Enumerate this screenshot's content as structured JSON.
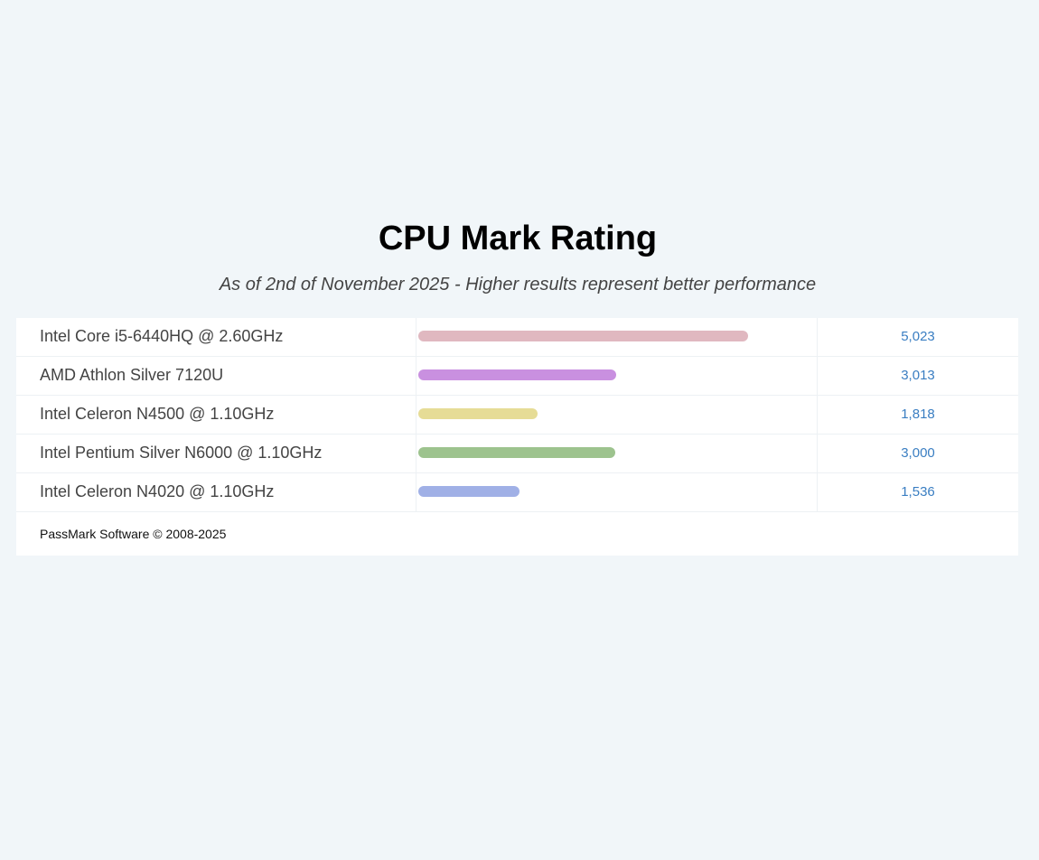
{
  "chart_data": {
    "type": "bar",
    "orientation": "horizontal",
    "title": "CPU Mark Rating",
    "subtitle": "As of 2nd of November 2025 - Higher results represent better performance",
    "categories": [
      "Intel Core i5-6440HQ @ 2.60GHz",
      "AMD Athlon Silver 7120U",
      "Intel Celeron N4500 @ 1.10GHz",
      "Intel Pentium Silver N6000 @ 1.10GHz",
      "Intel Celeron N4020 @ 1.10GHz"
    ],
    "values": [
      5023,
      3013,
      1818,
      3000,
      1536
    ],
    "value_labels": [
      "5,023",
      "3,013",
      "1,818",
      "3,000",
      "1,536"
    ],
    "colors": [
      "#e0b8c0",
      "#c990e0",
      "#e6dc96",
      "#9dc38e",
      "#a0b0e6"
    ]
  },
  "footer": "PassMark Software © 2008-2025"
}
